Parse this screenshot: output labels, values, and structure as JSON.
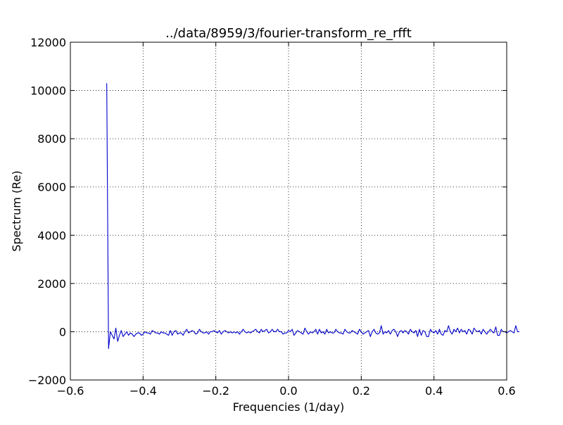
{
  "chart_data": {
    "type": "line",
    "title": "../data/8959/3/fourier-transform_re_rfft",
    "xlabel": "Frequencies (1/day)",
    "ylabel": "Spectrum (Re)",
    "xlim": [
      -0.6,
      0.6
    ],
    "ylim": [
      -2000,
      12000
    ],
    "x_ticks": [
      -0.6,
      -0.4,
      -0.2,
      0.0,
      0.2,
      0.4,
      0.6
    ],
    "x_tick_labels": [
      "−0.6",
      "−0.4",
      "−0.2",
      "0.0",
      "0.2",
      "0.4",
      "0.6"
    ],
    "y_ticks": [
      -2000,
      0,
      2000,
      4000,
      6000,
      8000,
      10000,
      12000
    ],
    "y_tick_labels": [
      "−2000",
      "0",
      "2000",
      "4000",
      "6000",
      "8000",
      "10000",
      "12000"
    ],
    "grid": true,
    "line_color": "#0000cc",
    "series": [
      {
        "x_start": -0.5,
        "x_step": 0.005,
        "values": [
          10300,
          -700,
          0,
          -150,
          -300,
          150,
          -400,
          -150,
          50,
          -200,
          -100,
          0,
          -150,
          -50,
          -100,
          -200,
          -100,
          -50,
          -50,
          -150,
          -100,
          0,
          -50,
          -50,
          -100,
          50,
          0,
          -50,
          -50,
          -100,
          0,
          -50,
          -50,
          -100,
          -150,
          50,
          -150,
          0,
          50,
          -100,
          -50,
          -50,
          -150,
          0,
          100,
          -50,
          0,
          50,
          0,
          -100,
          -50,
          100,
          0,
          -50,
          -50,
          0,
          -100,
          0,
          0,
          50,
          0,
          -50,
          50,
          -100,
          0,
          50,
          0,
          -50,
          0,
          -50,
          0,
          -50,
          0,
          -100,
          0,
          100,
          0,
          -50,
          0,
          -50,
          0,
          50,
          100,
          0,
          -50,
          100,
          0,
          50,
          100,
          -50,
          0,
          100,
          0,
          0,
          100,
          0,
          0,
          -100,
          -50,
          -50,
          50,
          0,
          100,
          -150,
          -50,
          50,
          0,
          -50,
          -100,
          150,
          0,
          -100,
          0,
          -50,
          0,
          100,
          -100,
          100,
          -50,
          0,
          -100,
          100,
          -50,
          0,
          -50,
          -50,
          100,
          0,
          -50,
          -50,
          -100,
          100,
          0,
          -50,
          -50,
          50,
          0,
          -50,
          -100,
          100,
          0,
          -100,
          -50,
          0,
          50,
          -200,
          0,
          100,
          -50,
          -100,
          -50,
          250,
          -100,
          0,
          -50,
          50,
          -100,
          50,
          100,
          0,
          -200,
          0,
          50,
          -50,
          50,
          0,
          -100,
          100,
          0,
          -50,
          50,
          -200,
          100,
          -150,
          50,
          0,
          -200,
          -200,
          100,
          0,
          -50,
          50,
          -100,
          100,
          -100,
          -150,
          50,
          0,
          250,
          0,
          -100,
          100,
          0,
          150,
          -50,
          100,
          0,
          50,
          -100,
          100,
          50,
          -100,
          150,
          50,
          0,
          50,
          -100,
          100,
          0,
          -100,
          0,
          100,
          0,
          -50,
          200,
          -150,
          -150,
          100,
          0,
          0,
          -50,
          0,
          50,
          0,
          -50,
          250,
          0,
          0
        ]
      }
    ]
  }
}
